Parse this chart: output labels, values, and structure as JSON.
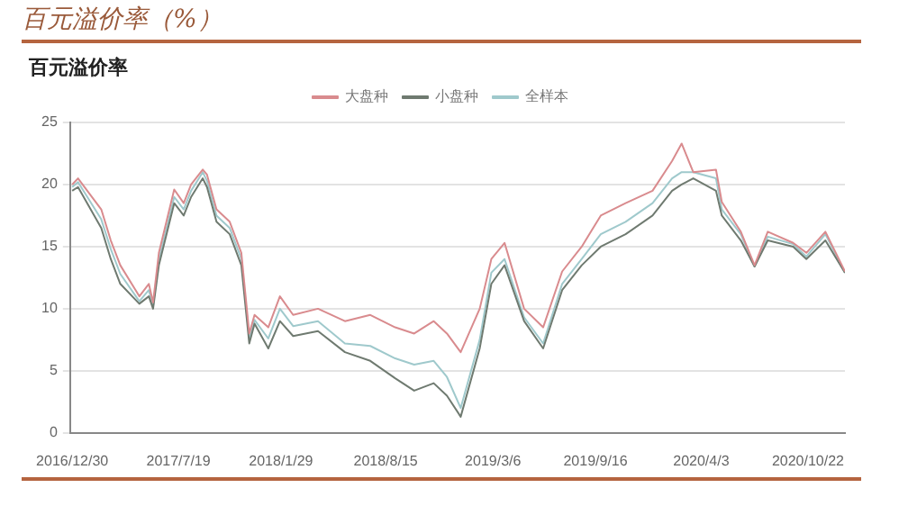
{
  "chart_data": {
    "type": "line",
    "title": "百元溢价率（%）",
    "subtitle": "百元溢价率",
    "x": [
      "2016-12-30",
      "2017-01-10",
      "2017-02-23",
      "2017-03-13",
      "2017-03-31",
      "2017-05-06",
      "2017-05-24",
      "2017-06-01",
      "2017-06-12",
      "2017-07-11",
      "2017-07-29",
      "2017-08-12",
      "2017-09-03",
      "2017-09-11",
      "2017-09-29",
      "2017-10-24",
      "2017-11-15",
      "2017-11-30",
      "2017-12-10",
      "2018-01-05",
      "2018-01-27",
      "2018-02-21",
      "2018-04-09",
      "2018-05-30",
      "2018-07-17",
      "2018-09-02",
      "2018-10-08",
      "2018-11-14",
      "2018-12-09",
      "2019-01-04",
      "2019-02-09",
      "2019-03-03",
      "2019-03-28",
      "2019-05-04",
      "2019-06-09",
      "2019-07-15",
      "2019-08-21",
      "2019-09-26",
      "2019-11-12",
      "2020-01-02",
      "2020-02-08",
      "2020-02-26",
      "2020-03-19",
      "2020-05-01",
      "2020-05-12",
      "2020-06-17",
      "2020-07-13",
      "2020-08-07",
      "2020-09-24",
      "2020-10-19",
      "2020-11-24",
      "2020-12-31"
    ],
    "series": [
      {
        "name": "大盘种",
        "color": "#d98b8e",
        "values": [
          20,
          20.5,
          18,
          15.5,
          13.5,
          11,
          12,
          10.5,
          14.5,
          19.6,
          18.5,
          20,
          21.2,
          20.8,
          18,
          17,
          14.5,
          8,
          9.5,
          8.5,
          11,
          9.5,
          10,
          9,
          9.5,
          8.5,
          8,
          9,
          8,
          6.5,
          10,
          14,
          15.3,
          10,
          8.5,
          13,
          15,
          17.5,
          18.5,
          19.5,
          21.9,
          23.3,
          21,
          21.2,
          18.6,
          16.2,
          13.5,
          16.2,
          15.3,
          14.5,
          16.2,
          13
        ]
      },
      {
        "name": "小盘种",
        "color": "#6f7a70",
        "values": [
          19.5,
          19.8,
          16.5,
          14,
          12,
          10.4,
          11,
          10,
          13.5,
          18.5,
          17.5,
          19,
          20.5,
          19.8,
          17,
          16,
          13.5,
          7.2,
          8.8,
          6.8,
          9,
          7.8,
          8.2,
          6.5,
          5.8,
          4.4,
          3.4,
          4,
          3,
          1.3,
          6.8,
          12,
          13.5,
          9,
          6.8,
          11.5,
          13.5,
          15,
          16,
          17.5,
          19.5,
          20,
          20.5,
          19.5,
          17.5,
          15.5,
          13.4,
          15.5,
          15,
          14,
          15.5,
          12.9
        ]
      },
      {
        "name": "全样本",
        "color": "#9fc9cc",
        "values": [
          19.8,
          20.2,
          17.2,
          14.8,
          12.8,
          10.6,
          11.5,
          10.2,
          14,
          19,
          18,
          19.5,
          21,
          20.3,
          17.5,
          16.5,
          14,
          7.6,
          9.1,
          7.6,
          10,
          8.6,
          9,
          7.2,
          7,
          6,
          5.5,
          5.8,
          4.5,
          2,
          7.5,
          12.9,
          14,
          9.3,
          7.2,
          12,
          14,
          16,
          17,
          18.5,
          20.5,
          21,
          21,
          20.5,
          18,
          16,
          13.4,
          15.8,
          15.2,
          14.2,
          16,
          12.9
        ]
      }
    ],
    "xlim": [
      "2016-12-26",
      "2020-12-31"
    ],
    "xticks": [
      {
        "value": "2016-12-30",
        "label": "2016/12/30"
      },
      {
        "value": "2017-07-19",
        "label": "2017/7/19"
      },
      {
        "value": "2018-01-29",
        "label": "2018/1/29"
      },
      {
        "value": "2018-08-15",
        "label": "2018/8/15"
      },
      {
        "value": "2019-03-06",
        "label": "2019/3/6"
      },
      {
        "value": "2019-09-16",
        "label": "2019/9/16"
      },
      {
        "value": "2020-04-03",
        "label": "2020/4/3"
      },
      {
        "value": "2020-10-22",
        "label": "2020/10/22"
      }
    ],
    "ylim": [
      0,
      25
    ],
    "yticks": [
      0,
      5,
      10,
      15,
      20,
      25
    ],
    "grid": "y",
    "legend": "top",
    "line_style": "solid",
    "marker": "none"
  }
}
